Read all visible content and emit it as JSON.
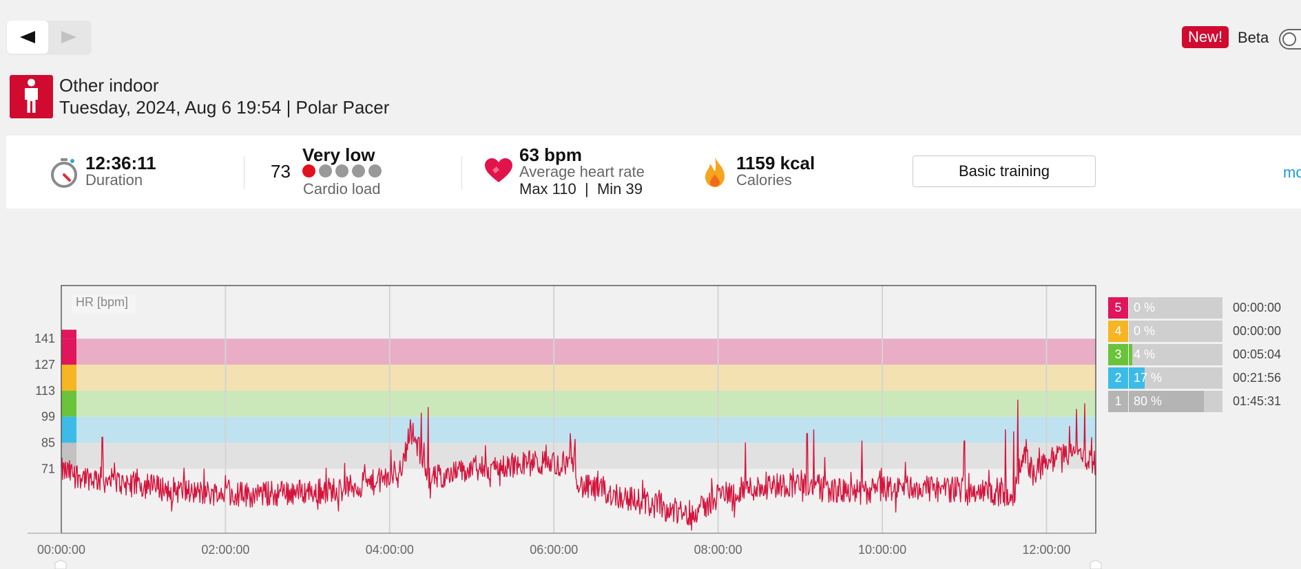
{
  "nav": {
    "prev_icon": "left-triangle-icon",
    "next_icon": "right-triangle-icon"
  },
  "beta": {
    "badge": "New!",
    "label": "Beta",
    "enabled": false
  },
  "session": {
    "sport": "Other indoor",
    "date_line": "Tuesday, 2024, Aug 6 19:54 | Polar Pacer",
    "sport_icon": "person-icon"
  },
  "summary": {
    "duration": {
      "value": "12:36:11",
      "label": "Duration",
      "icon": "stopwatch-icon"
    },
    "cardio": {
      "value": "73",
      "level": "Very low",
      "label": "Cardio load",
      "dots_filled": 1,
      "dots_total": 5
    },
    "heart": {
      "value": "63 bpm",
      "label": "Average heart rate",
      "max": "Max 110",
      "sep": "|",
      "min": "Min 39",
      "icon": "heart-icon"
    },
    "calories": {
      "value": "1159 kcal",
      "label": "Calories",
      "icon": "flame-icon"
    },
    "basic_training": "Basic training",
    "more": "mo"
  },
  "chart_data": {
    "type": "line",
    "series_label": "HR [bpm]",
    "y_ticks": [
      "141",
      "127",
      "113",
      "99",
      "85",
      "71"
    ],
    "x_ticks": [
      "00:00:00",
      "02:00:00",
      "04:00:00",
      "06:00:00",
      "08:00:00",
      "10:00:00",
      "12:00:00"
    ],
    "x_range_minutes": [
      0,
      756
    ],
    "y_range": [
      35,
      145
    ],
    "zone_bands": [
      {
        "zone": 5,
        "from": 127,
        "to": 141,
        "color": "#eaadc6"
      },
      {
        "zone": 4,
        "from": 113,
        "to": 127,
        "color": "#f3e1b2"
      },
      {
        "zone": 3,
        "from": 99,
        "to": 113,
        "color": "#cbe8ba"
      },
      {
        "zone": 2,
        "from": 85,
        "to": 99,
        "color": "#bee2ef"
      },
      {
        "zone": 1,
        "from": 71,
        "to": 85,
        "color": "#e1e1e1"
      }
    ],
    "line_color": "#d4143c",
    "hr_profile": [
      [
        0,
        70
      ],
      [
        10,
        68
      ],
      [
        30,
        65
      ],
      [
        60,
        62
      ],
      [
        80,
        60
      ],
      [
        100,
        58
      ],
      [
        120,
        58
      ],
      [
        140,
        57
      ],
      [
        160,
        58
      ],
      [
        180,
        59
      ],
      [
        200,
        60
      ],
      [
        220,
        62
      ],
      [
        240,
        66
      ],
      [
        250,
        74
      ],
      [
        255,
        93
      ],
      [
        262,
        80
      ],
      [
        270,
        65
      ],
      [
        280,
        68
      ],
      [
        300,
        70
      ],
      [
        320,
        72
      ],
      [
        340,
        74
      ],
      [
        370,
        74
      ],
      [
        376,
        72
      ],
      [
        378,
        62
      ],
      [
        400,
        58
      ],
      [
        420,
        54
      ],
      [
        440,
        50
      ],
      [
        455,
        47
      ],
      [
        470,
        50
      ],
      [
        480,
        57
      ],
      [
        500,
        60
      ],
      [
        520,
        62
      ],
      [
        540,
        63
      ],
      [
        560,
        60
      ],
      [
        580,
        58
      ],
      [
        600,
        60
      ],
      [
        620,
        61
      ],
      [
        640,
        60
      ],
      [
        660,
        60
      ],
      [
        680,
        58
      ],
      [
        695,
        55
      ],
      [
        700,
        70
      ],
      [
        705,
        78
      ],
      [
        710,
        68
      ],
      [
        720,
        75
      ],
      [
        740,
        80
      ],
      [
        756,
        74
      ]
    ],
    "hr_spikes": [
      [
        30,
        88
      ],
      [
        263,
        101
      ],
      [
        268,
        104
      ],
      [
        372,
        90
      ],
      [
        500,
        85
      ],
      [
        545,
        90
      ],
      [
        550,
        92
      ],
      [
        585,
        86
      ],
      [
        660,
        86
      ],
      [
        690,
        92
      ],
      [
        696,
        91
      ],
      [
        699,
        108
      ],
      [
        742,
        103
      ],
      [
        748,
        106
      ]
    ],
    "zones_summary": [
      {
        "zone": "5",
        "percent": 0,
        "percent_label": "0 %",
        "time": "00:00:00",
        "color": "#e0155c"
      },
      {
        "zone": "4",
        "percent": 0,
        "percent_label": "0 %",
        "time": "00:00:00",
        "color": "#f6b523"
      },
      {
        "zone": "3",
        "percent": 4,
        "percent_label": "4 %",
        "time": "00:05:04",
        "color": "#6ac33a"
      },
      {
        "zone": "2",
        "percent": 17,
        "percent_label": "17 %",
        "time": "00:21:56",
        "color": "#3dbbe8"
      },
      {
        "zone": "1",
        "percent": 80,
        "percent_label": "80 %",
        "time": "01:45:31",
        "color": "#b4b4b4"
      }
    ]
  }
}
